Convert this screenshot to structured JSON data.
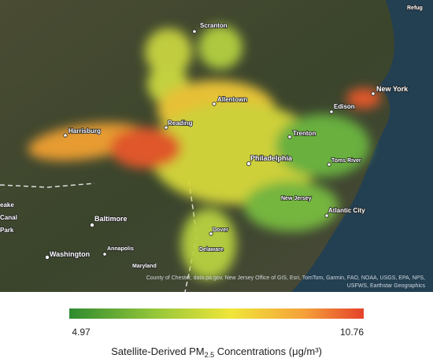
{
  "map": {
    "places": [
      "Refug",
      "Scranton",
      "New York",
      "Allentown",
      "Edison",
      "Harrisburg",
      "Reading",
      "Trenton",
      "Philadelphia",
      "Toms River",
      "New Jersey",
      "Atlantic City",
      "eake",
      "Canal",
      "Park",
      "Baltimore",
      "Annapolis",
      "Washington",
      "Maryland",
      "Dover",
      "Delaware"
    ],
    "attribution": [
      "County of Chester, data.pa.gov, New Jersey Office of GIS, Esri, TomTom, Garmin, FAO, NOAA, USGS, EPA, NPS,",
      "USFWS, Earthstar Geographics"
    ]
  },
  "colorbar": {
    "min": 4.97,
    "max": 10.76,
    "title": {
      "main": "Satellite-Derived PM",
      "sub": "2.5",
      "rest": " Concentrations (μg/m³)"
    }
  }
}
